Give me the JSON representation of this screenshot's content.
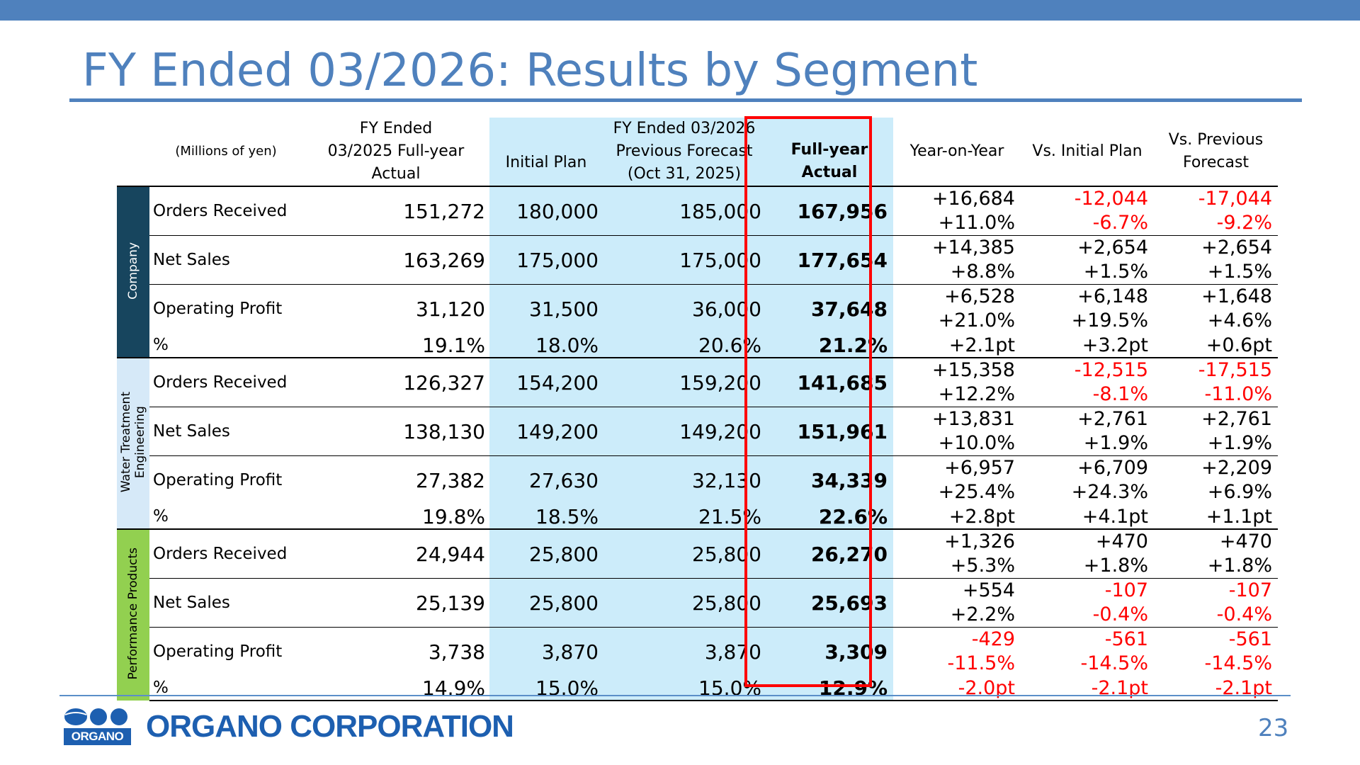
{
  "title": "FY Ended 03/2026: Results by Segment",
  "page_number": "23",
  "company": "ORGANO CORPORATION",
  "logo_text": "ORGANO",
  "colors": {
    "accent": "#4f81bd",
    "highlight": "#ff0000",
    "negative": "#ff0000",
    "shade": "#ccecfa",
    "company_band": "#17455e",
    "water_band": "#d6e9f8",
    "perf_band": "#92d050",
    "logo_blue": "#1d5fb0"
  },
  "headers": {
    "units": "(Millions of yen)",
    "prev_actual_l1": "FY Ended",
    "prev_actual_l2": "03/2025 Full-year",
    "prev_actual_l3": "Actual",
    "group_label": "FY Ended 03/2026",
    "initial_plan": "Initial Plan",
    "prev_forecast_l1": "Previous Forecast",
    "prev_forecast_l2": "(Oct 31, 2025)",
    "full_year_l1": "Full-year",
    "full_year_l2": "Actual",
    "yoy": "Year-on-Year",
    "vs_initial": "Vs. Initial Plan",
    "vs_prev_l1": "Vs. Previous",
    "vs_prev_l2": "Forecast"
  },
  "segments": {
    "company": {
      "name": "Company",
      "orders": {
        "label": "Orders Received",
        "prev": "151,272",
        "plan": "180,000",
        "forecast": "185,000",
        "actual": "167,956",
        "yoy": "+16,684",
        "yoy_pct": "+11.0%",
        "vs_plan": "-12,044",
        "vs_plan_pct": "-6.7%",
        "vs_fc": "-17,044",
        "vs_fc_pct": "-9.2%"
      },
      "sales": {
        "label": "Net Sales",
        "prev": "163,269",
        "plan": "175,000",
        "forecast": "175,000",
        "actual": "177,654",
        "yoy": "+14,385",
        "yoy_pct": "+8.8%",
        "vs_plan": "+2,654",
        "vs_plan_pct": "+1.5%",
        "vs_fc": "+2,654",
        "vs_fc_pct": "+1.5%"
      },
      "profit": {
        "label": "Operating Profit",
        "prev": "31,120",
        "plan": "31,500",
        "forecast": "36,000",
        "actual": "37,648",
        "yoy": "+6,528",
        "yoy_pct": "+21.0%",
        "vs_plan": "+6,148",
        "vs_plan_pct": "+19.5%",
        "vs_fc": "+1,648",
        "vs_fc_pct": "+4.6%"
      },
      "margin": {
        "label": "%",
        "prev": "19.1%",
        "plan": "18.0%",
        "forecast": "20.6%",
        "actual": "21.2%",
        "yoy": "+2.1pt",
        "vs_plan": "+3.2pt",
        "vs_fc": "+0.6pt"
      }
    },
    "water": {
      "name_l1": "Water Treatment",
      "name_l2": "Engineering",
      "orders": {
        "label": "Orders Received",
        "prev": "126,327",
        "plan": "154,200",
        "forecast": "159,200",
        "actual": "141,685",
        "yoy": "+15,358",
        "yoy_pct": "+12.2%",
        "vs_plan": "-12,515",
        "vs_plan_pct": "-8.1%",
        "vs_fc": "-17,515",
        "vs_fc_pct": "-11.0%"
      },
      "sales": {
        "label": "Net Sales",
        "prev": "138,130",
        "plan": "149,200",
        "forecast": "149,200",
        "actual": "151,961",
        "yoy": "+13,831",
        "yoy_pct": "+10.0%",
        "vs_plan": "+2,761",
        "vs_plan_pct": "+1.9%",
        "vs_fc": "+2,761",
        "vs_fc_pct": "+1.9%"
      },
      "profit": {
        "label": "Operating Profit",
        "prev": "27,382",
        "plan": "27,630",
        "forecast": "32,130",
        "actual": "34,339",
        "yoy": "+6,957",
        "yoy_pct": "+25.4%",
        "vs_plan": "+6,709",
        "vs_plan_pct": "+24.3%",
        "vs_fc": "+2,209",
        "vs_fc_pct": "+6.9%"
      },
      "margin": {
        "label": "%",
        "prev": "19.8%",
        "plan": "18.5%",
        "forecast": "21.5%",
        "actual": "22.6%",
        "yoy": "+2.8pt",
        "vs_plan": "+4.1pt",
        "vs_fc": "+1.1pt"
      }
    },
    "perf": {
      "name": "Performance Products",
      "orders": {
        "label": "Orders Received",
        "prev": "24,944",
        "plan": "25,800",
        "forecast": "25,800",
        "actual": "26,270",
        "yoy": "+1,326",
        "yoy_pct": "+5.3%",
        "vs_plan": "+470",
        "vs_plan_pct": "+1.8%",
        "vs_fc": "+470",
        "vs_fc_pct": "+1.8%"
      },
      "sales": {
        "label": "Net Sales",
        "prev": "25,139",
        "plan": "25,800",
        "forecast": "25,800",
        "actual": "25,693",
        "yoy": "+554",
        "yoy_pct": "+2.2%",
        "vs_plan": "-107",
        "vs_plan_pct": "-0.4%",
        "vs_fc": "-107",
        "vs_fc_pct": "-0.4%"
      },
      "profit": {
        "label": "Operating Profit",
        "prev": "3,738",
        "plan": "3,870",
        "forecast": "3,870",
        "actual": "3,309",
        "yoy": "-429",
        "yoy_pct": "-11.5%",
        "vs_plan": "-561",
        "vs_plan_pct": "-14.5%",
        "vs_fc": "-561",
        "vs_fc_pct": "-14.5%"
      },
      "margin": {
        "label": "%",
        "prev": "14.9%",
        "plan": "15.0%",
        "forecast": "15.0%",
        "actual": "12.9%",
        "yoy": "-2.0pt",
        "vs_plan": "-2.1pt",
        "vs_fc": "-2.1pt"
      }
    }
  }
}
